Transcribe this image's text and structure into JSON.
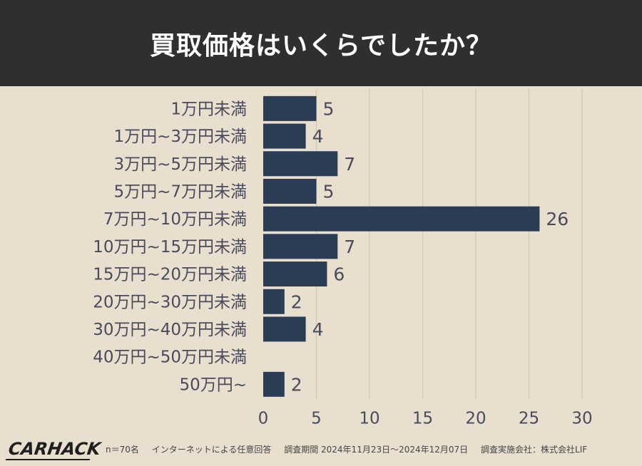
{
  "header": {
    "title": "買取価格はいくらでしたか？"
  },
  "footer": {
    "logo": "CARHACK",
    "sample": "n＝70名",
    "method": "インターネットによる任意回答",
    "period": "調査期間 2024年11月23日～2024年12月07日",
    "org": "調査実施会社：株式会社LIF"
  },
  "colors": {
    "bar": "#2a3d55",
    "background": "#e9dfcf",
    "header": "#2f2f2f",
    "label": "#4a4a5c"
  },
  "chart_data": {
    "type": "bar",
    "orientation": "horizontal",
    "title": "買取価格はいくらでしたか？",
    "categories": [
      "1万円未満",
      "1万円~3万円未満",
      "3万円~5万円未満",
      "5万円~7万円未満",
      "7万円~10万円未満",
      "10万円~15万円未満",
      "15万円~20万円未満",
      "20万円~30万円未満",
      "30万円~40万円未満",
      "40万円~50万円未満",
      "50万円~"
    ],
    "values": [
      5,
      4,
      7,
      5,
      26,
      7,
      6,
      2,
      4,
      0,
      2
    ],
    "value_labels": [
      "5",
      "4",
      "7",
      "5",
      "26",
      "7",
      "6",
      "2",
      "4",
      "",
      "2"
    ],
    "xlim": [
      0,
      30
    ],
    "xticks": [
      0,
      5,
      10,
      15,
      20,
      25,
      30
    ],
    "xlabel": "",
    "ylabel": "",
    "grid": "vertical"
  }
}
